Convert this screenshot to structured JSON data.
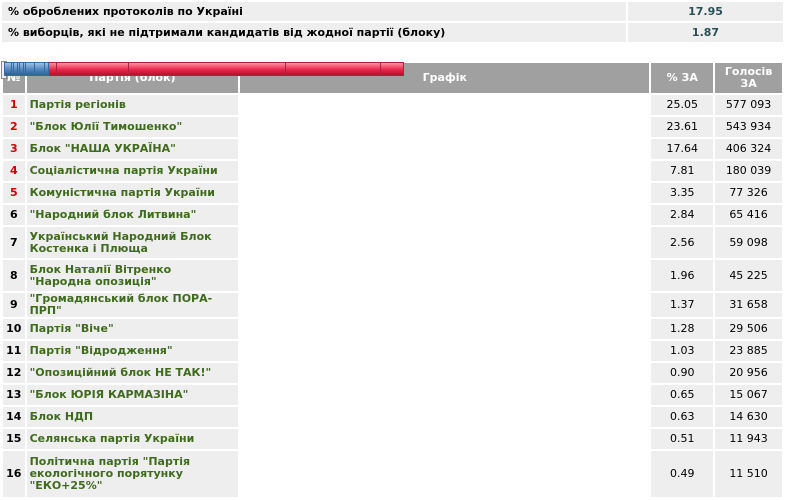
{
  "summary": {
    "processed_label": "% оброблених протоколів по Україні",
    "processed_value": "17.95",
    "against_label": "% виборців, які не підтримали кандидатів від жодної партії (блоку)",
    "against_value": "1.87"
  },
  "headers": {
    "num": "№",
    "party": "Партія (блок)",
    "chart": "Графік",
    "pct": "% ЗА",
    "votes": "Голосів ЗА"
  },
  "colors": {
    "red_bar": "#e8264a",
    "blue_bar": "#4f86bf",
    "party_text": "#3f6b1c",
    "rank_red": "#cc0000"
  },
  "chart_data": {
    "type": "bar",
    "orientation": "horizontal",
    "max": 25.05,
    "rows": [
      {
        "num": "1",
        "party": "Партія регіонів",
        "pct": "25.05",
        "value": 25.05,
        "votes": "577 093",
        "color": "red",
        "rows": 1
      },
      {
        "num": "2",
        "party": "\"Блок Юлії Тимошенко\"",
        "pct": "23.61",
        "value": 23.61,
        "votes": "543 934",
        "color": "red",
        "rows": 1
      },
      {
        "num": "3",
        "party": "Блок \"НАША УКРАЇНА\"",
        "pct": "17.64",
        "value": 17.64,
        "votes": "406 324",
        "color": "red",
        "rows": 1
      },
      {
        "num": "4",
        "party": "Соціалістична партія України",
        "pct": "7.81",
        "value": 7.81,
        "votes": "180 039",
        "color": "red",
        "rows": 1
      },
      {
        "num": "5",
        "party": "Комуністична партія України",
        "pct": "3.35",
        "value": 3.35,
        "votes": "77 326",
        "color": "red",
        "rows": 1
      },
      {
        "num": "6",
        "party": "\"Народний блок Литвина\"",
        "pct": "2.84",
        "value": 2.84,
        "votes": "65 416",
        "color": "blue",
        "rows": 1
      },
      {
        "num": "7",
        "party": "Український Народний Блок Костенка і Плюща",
        "pct": "2.56",
        "value": 2.56,
        "votes": "59 098",
        "color": "blue",
        "rows": 2
      },
      {
        "num": "8",
        "party": "Блок Наталії Вітренко \"Народна опозиція\"",
        "pct": "1.96",
        "value": 1.96,
        "votes": "45 225",
        "color": "blue",
        "rows": 2
      },
      {
        "num": "9",
        "party": "\"Громадянський блок ПОРА-ПРП\"",
        "pct": "1.37",
        "value": 1.37,
        "votes": "31 658",
        "color": "blue",
        "rows": 1
      },
      {
        "num": "10",
        "party": "Партія \"Віче\"",
        "pct": "1.28",
        "value": 1.28,
        "votes": "29 506",
        "color": "blue",
        "rows": 1
      },
      {
        "num": "11",
        "party": "Партія \"Відродження\"",
        "pct": "1.03",
        "value": 1.03,
        "votes": "23 885",
        "color": "blue",
        "rows": 1
      },
      {
        "num": "12",
        "party": "\"Опозиційний блок НЕ ТАК!\"",
        "pct": "0.90",
        "value": 0.9,
        "votes": "20 956",
        "color": "blue",
        "rows": 1
      },
      {
        "num": "13",
        "party": "\"Блок ЮРІЯ КАРМАЗІНА\"",
        "pct": "0.65",
        "value": 0.65,
        "votes": "15 067",
        "color": "blue",
        "rows": 1
      },
      {
        "num": "14",
        "party": "Блок НДП",
        "pct": "0.63",
        "value": 0.63,
        "votes": "14 630",
        "color": "blue",
        "rows": 1
      },
      {
        "num": "15",
        "party": "Селянська партія України",
        "pct": "0.51",
        "value": 0.51,
        "votes": "11 943",
        "color": "blue",
        "rows": 1
      },
      {
        "num": "16",
        "party": "Політична партія \"Партія екологічного порятунку \"ЕКО+25%\"",
        "pct": "0.49",
        "value": 0.49,
        "votes": "11 510",
        "color": "blue",
        "rows": 3
      }
    ]
  }
}
